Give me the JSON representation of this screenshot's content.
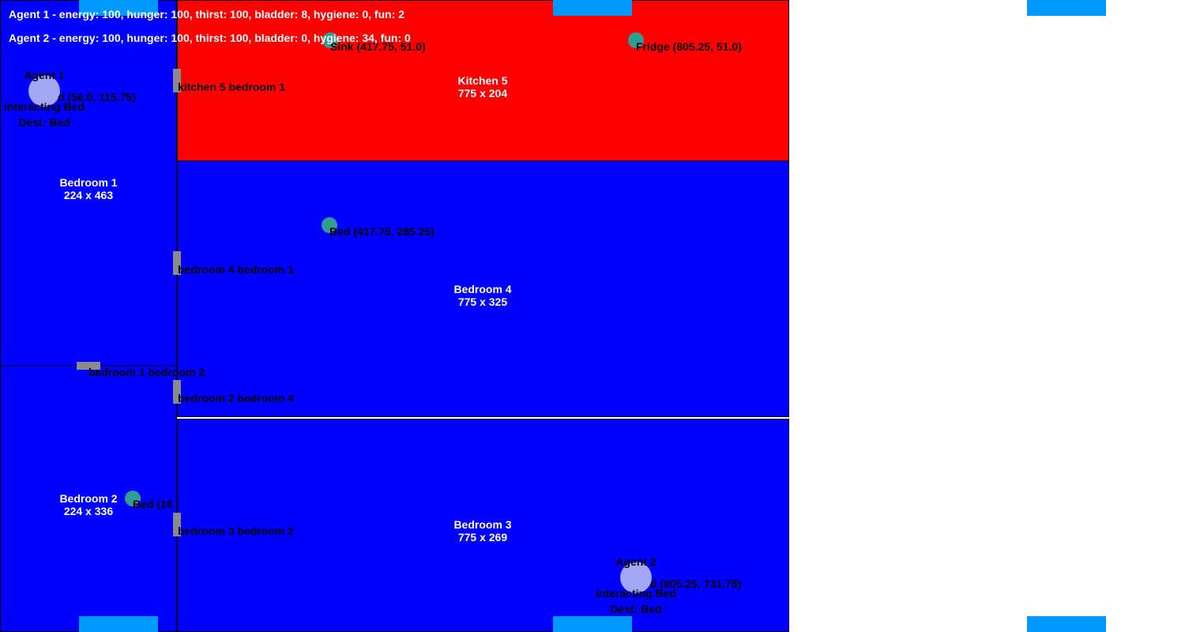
{
  "colors": {
    "bedroom": "#0000ff",
    "kitchen": "#ff0000",
    "door": "#8a8a8a",
    "edge": "#0099ff",
    "object": "#2e9e93",
    "agent": "#a3a8f5"
  },
  "status": {
    "agent1": "Agent 1 - energy: 100, hunger: 100, thirst: 100, bladder: 8, hygiene: 0, fun: 2",
    "agent2": "Agent 2 - energy: 100, hunger: 100, thirst: 100, bladder: 0, hygiene: 34, fun: 0"
  },
  "rooms": {
    "kitchen5": {
      "name": "Kitchen 5",
      "size": "775 x 204"
    },
    "bedroom1": {
      "name": "Bedroom 1",
      "size": "224 x 463"
    },
    "bedroom4": {
      "name": "Bedroom 4",
      "size": "775 x 325"
    },
    "bedroom2": {
      "name": "Bedroom 2",
      "size": "224 x 336"
    },
    "bedroom3": {
      "name": "Bedroom 3",
      "size": "775 x 269"
    }
  },
  "doors": {
    "kitchen5_bedroom1": "kitchen 5 bedroom 1",
    "bedroom4_bedroom1": "bedroom 4 bedroom 1",
    "bedroom1_bedroom2": "bedroom 1 bedroom 2",
    "bedroom2_bedroom4": "bedroom 2 bedroom 4",
    "bedroom3_bedroom2": "bedroom 3 bedroom 2"
  },
  "objects": {
    "sink": "Sink (417.75, 51.0)",
    "fridge": "Fridge (805.25, 51.0)",
    "bed_bedroom4": "Bed (417.75, 285.25)",
    "bed_bedroom2": "Bed (16",
    "bed_bedroom1": "d (56.0, 115.75)",
    "bed_bedroom3": "d (805.25, 731.75)"
  },
  "agents": {
    "agent1": {
      "name": "Agent 1",
      "action": "interacting Bed",
      "dest": "Dest: Bed"
    },
    "agent2": {
      "name": "Agent 2",
      "action": "interacting Bed",
      "dest": "Dest: Bed"
    }
  }
}
